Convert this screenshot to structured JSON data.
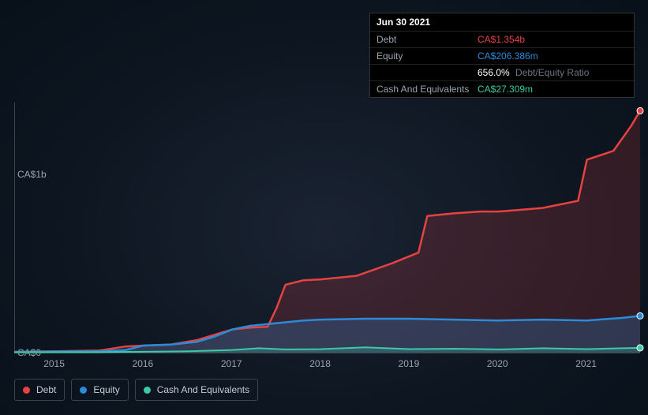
{
  "tooltip": {
    "date": "Jun 30 2021",
    "rows": [
      {
        "label": "Debt",
        "value": "CA$1.354b",
        "class": "debt"
      },
      {
        "label": "Equity",
        "value": "CA$206.386m",
        "class": "equity"
      },
      {
        "label": "",
        "value": "656.0%",
        "suffix": "Debt/Equity Ratio",
        "class": "ratio"
      },
      {
        "label": "Cash And Equivalents",
        "value": "CA$27.309m",
        "class": "cash"
      }
    ]
  },
  "chart": {
    "type": "area",
    "y_axis": {
      "min": 0,
      "max": 1400,
      "ticks": [
        {
          "v": 0,
          "label": "CA$0"
        },
        {
          "v": 1000,
          "label": "CA$1b"
        }
      ]
    },
    "x_axis": {
      "min": 2014.55,
      "max": 2021.6,
      "ticks": [
        2015,
        2016,
        2017,
        2018,
        2019,
        2020,
        2021
      ]
    },
    "series": [
      {
        "name": "Debt",
        "color": "#e74242",
        "fill": "rgba(231,66,66,0.18)",
        "line_width": 2.5,
        "points": [
          [
            2014.55,
            5
          ],
          [
            2015.0,
            8
          ],
          [
            2015.5,
            12
          ],
          [
            2015.8,
            35
          ],
          [
            2016.0,
            40
          ],
          [
            2016.3,
            45
          ],
          [
            2016.6,
            70
          ],
          [
            2016.8,
            100
          ],
          [
            2017.0,
            130
          ],
          [
            2017.2,
            140
          ],
          [
            2017.4,
            145
          ],
          [
            2017.5,
            250
          ],
          [
            2017.6,
            380
          ],
          [
            2017.8,
            405
          ],
          [
            2018.0,
            410
          ],
          [
            2018.4,
            430
          ],
          [
            2018.8,
            500
          ],
          [
            2019.1,
            560
          ],
          [
            2019.2,
            765
          ],
          [
            2019.5,
            780
          ],
          [
            2019.8,
            790
          ],
          [
            2020.0,
            790
          ],
          [
            2020.5,
            810
          ],
          [
            2020.9,
            850
          ],
          [
            2021.0,
            1080
          ],
          [
            2021.3,
            1130
          ],
          [
            2021.5,
            1270
          ],
          [
            2021.6,
            1354
          ]
        ]
      },
      {
        "name": "Equity",
        "color": "#2a8cd8",
        "fill": "rgba(42,140,216,0.25)",
        "line_width": 2.5,
        "points": [
          [
            2014.55,
            4
          ],
          [
            2015.0,
            6
          ],
          [
            2015.5,
            8
          ],
          [
            2015.8,
            15
          ],
          [
            2016.0,
            40
          ],
          [
            2016.3,
            45
          ],
          [
            2016.6,
            60
          ],
          [
            2016.8,
            90
          ],
          [
            2017.0,
            130
          ],
          [
            2017.2,
            150
          ],
          [
            2017.5,
            165
          ],
          [
            2017.8,
            180
          ],
          [
            2018.0,
            185
          ],
          [
            2018.5,
            190
          ],
          [
            2019.0,
            190
          ],
          [
            2019.5,
            185
          ],
          [
            2020.0,
            180
          ],
          [
            2020.5,
            185
          ],
          [
            2021.0,
            180
          ],
          [
            2021.4,
            195
          ],
          [
            2021.6,
            206
          ]
        ]
      },
      {
        "name": "Cash And Equivalents",
        "color": "#3bc9a8",
        "fill": "rgba(59,201,168,0.22)",
        "line_width": 2,
        "points": [
          [
            2014.55,
            2
          ],
          [
            2015.0,
            3
          ],
          [
            2015.5,
            3
          ],
          [
            2016.0,
            5
          ],
          [
            2016.5,
            8
          ],
          [
            2017.0,
            15
          ],
          [
            2017.3,
            25
          ],
          [
            2017.6,
            18
          ],
          [
            2018.0,
            20
          ],
          [
            2018.5,
            30
          ],
          [
            2019.0,
            20
          ],
          [
            2019.5,
            22
          ],
          [
            2020.0,
            18
          ],
          [
            2020.5,
            25
          ],
          [
            2021.0,
            20
          ],
          [
            2021.6,
            27
          ]
        ]
      }
    ],
    "background_color": "transparent",
    "axis_color": "#3a4450",
    "label_fontsize": 12,
    "label_color": "#9aa4b0",
    "end_dot_radius": 4
  },
  "legend": [
    {
      "label": "Debt",
      "color": "#e74242"
    },
    {
      "label": "Equity",
      "color": "#2a8cd8"
    },
    {
      "label": "Cash And Equivalents",
      "color": "#3bc9a8"
    }
  ]
}
